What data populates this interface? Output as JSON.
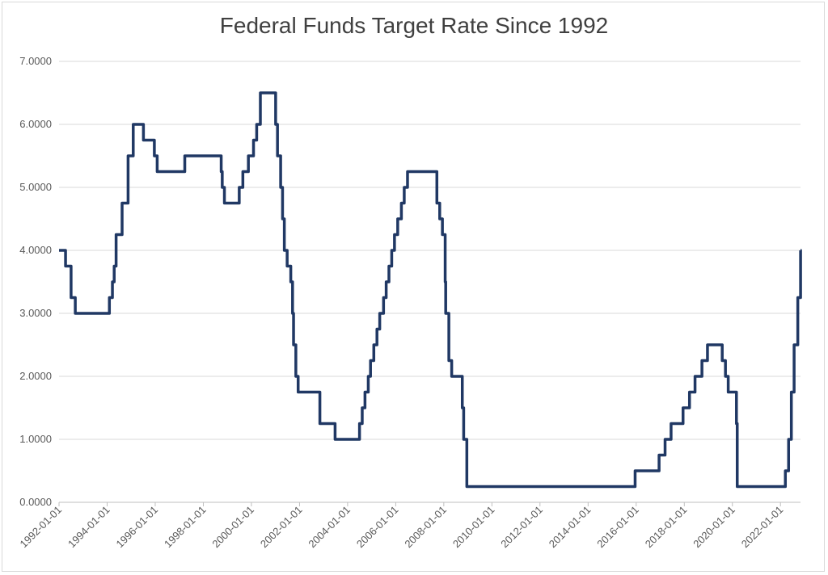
{
  "chart_data": {
    "type": "line",
    "title": "Federal Funds Target Rate Since 1992",
    "xlabel": "",
    "ylabel": "",
    "ylim": [
      0,
      7
    ],
    "y_ticks": [
      "0.0000",
      "1.0000",
      "2.0000",
      "3.0000",
      "4.0000",
      "5.0000",
      "6.0000",
      "7.0000"
    ],
    "x_ticks": [
      "1992-01-01",
      "1994-01-01",
      "1996-01-01",
      "1998-01-01",
      "2000-01-01",
      "2002-01-01",
      "2004-01-01",
      "2006-01-01",
      "2008-01-01",
      "2010-01-01",
      "2012-01-01",
      "2014-01-01",
      "2016-01-01",
      "2018-01-01",
      "2020-01-01",
      "2022-01-01"
    ],
    "xlim": [
      "1992-01-01",
      "2022-11-01"
    ],
    "grid": true,
    "line_color": "#203864",
    "series": [
      {
        "x": [
          "1992-01-01",
          "1992-04-09",
          "1992-07-02",
          "1992-09-04",
          "1994-02-04",
          "1994-03-22",
          "1994-04-18",
          "1994-05-17",
          "1994-08-16",
          "1994-11-15",
          "1995-02-01",
          "1995-07-06",
          "1995-12-19",
          "1996-01-31",
          "1997-03-25",
          "1998-09-29",
          "1998-10-15",
          "1998-11-17",
          "1999-06-30",
          "1999-08-24",
          "1999-11-16",
          "2000-02-02",
          "2000-03-21",
          "2000-05-16",
          "2001-01-03",
          "2001-01-31",
          "2001-03-20",
          "2001-04-18",
          "2001-05-15",
          "2001-06-27",
          "2001-08-21",
          "2001-09-17",
          "2001-10-02",
          "2001-11-06",
          "2001-12-11",
          "2002-11-06",
          "2003-06-25",
          "2004-06-30",
          "2004-08-10",
          "2004-09-21",
          "2004-11-10",
          "2004-12-14",
          "2005-02-02",
          "2005-03-22",
          "2005-05-03",
          "2005-06-30",
          "2005-08-09",
          "2005-09-20",
          "2005-11-01",
          "2005-12-13",
          "2006-01-31",
          "2006-03-28",
          "2006-05-10",
          "2006-06-29",
          "2007-09-18",
          "2007-10-31",
          "2007-12-11",
          "2008-01-22",
          "2008-01-30",
          "2008-03-18",
          "2008-04-30",
          "2008-10-08",
          "2008-10-29",
          "2008-12-16",
          "2015-12-16",
          "2016-12-14",
          "2017-03-15",
          "2017-06-14",
          "2017-12-13",
          "2018-03-21",
          "2018-06-13",
          "2018-09-26",
          "2018-12-19",
          "2019-07-31",
          "2019-09-18",
          "2019-10-30",
          "2020-03-03",
          "2020-03-15",
          "2022-03-16",
          "2022-05-04",
          "2022-06-15",
          "2022-07-27",
          "2022-09-21",
          "2022-11-02"
        ],
        "values": [
          4.0,
          3.75,
          3.25,
          3.0,
          3.25,
          3.5,
          3.75,
          4.25,
          4.75,
          5.5,
          6.0,
          5.75,
          5.5,
          5.25,
          5.5,
          5.25,
          5.0,
          4.75,
          5.0,
          5.25,
          5.5,
          5.75,
          6.0,
          6.5,
          6.0,
          5.5,
          5.0,
          4.5,
          4.0,
          3.75,
          3.5,
          3.0,
          2.5,
          2.0,
          1.75,
          1.25,
          1.0,
          1.25,
          1.5,
          1.75,
          2.0,
          2.25,
          2.5,
          2.75,
          3.0,
          3.25,
          3.5,
          3.75,
          4.0,
          4.25,
          4.5,
          4.75,
          5.0,
          5.25,
          4.75,
          4.5,
          4.25,
          3.5,
          3.0,
          2.25,
          2.0,
          1.5,
          1.0,
          0.25,
          0.5,
          0.75,
          1.0,
          1.25,
          1.5,
          1.75,
          2.0,
          2.25,
          2.5,
          2.25,
          2.0,
          1.75,
          1.25,
          0.25,
          0.5,
          1.0,
          1.75,
          2.5,
          3.25,
          4.0
        ]
      }
    ]
  }
}
